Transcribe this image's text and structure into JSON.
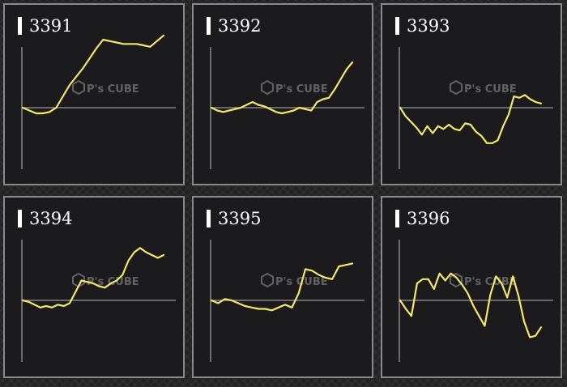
{
  "watermark": {
    "brand": "P's CUBE"
  },
  "colors": {
    "line": "#f4e76a",
    "axis": "#9a9a9a",
    "panel": "#1b1b1d",
    "border": "#8a8a8a"
  },
  "chart_data": [
    {
      "type": "line",
      "title": "3391",
      "y": [
        0,
        -2,
        -4,
        -4,
        -3,
        0,
        8,
        16,
        22,
        28,
        35,
        42,
        48,
        47,
        46,
        45,
        45,
        45,
        44,
        43,
        47,
        51
      ]
    },
    {
      "type": "line",
      "title": "3392",
      "y": [
        0,
        -2,
        -3,
        -2,
        -1,
        0,
        2,
        4,
        2,
        1,
        -1,
        -3,
        -4,
        -3,
        -2,
        0,
        -1,
        -2,
        4,
        6,
        7,
        13,
        20,
        27,
        32
      ]
    },
    {
      "type": "line",
      "title": "3393",
      "y": [
        0,
        -6,
        -10,
        -14,
        -19,
        -13,
        -18,
        -13,
        -15,
        -12,
        -15,
        -16,
        -11,
        -12,
        -17,
        -20,
        -25,
        -25,
        -23,
        -13,
        -5,
        8,
        7,
        9,
        6,
        4,
        3
      ]
    },
    {
      "type": "line",
      "title": "3394",
      "y": [
        0,
        -1,
        -3,
        -5,
        -4,
        -5,
        -3,
        -4,
        -2,
        6,
        14,
        13,
        12,
        10,
        9,
        12,
        14,
        18,
        28,
        34,
        37,
        34,
        32,
        30,
        32
      ]
    },
    {
      "type": "line",
      "title": "3395",
      "y": [
        0,
        -2,
        1,
        0,
        -2,
        -4,
        -5,
        -6,
        -6,
        -7,
        -5,
        -3,
        -5,
        5,
        22,
        21,
        18,
        16,
        15,
        24,
        25,
        26
      ]
    },
    {
      "type": "line",
      "title": "3396",
      "y": [
        0,
        -6,
        -11,
        12,
        15,
        15,
        8,
        19,
        14,
        19,
        16,
        11,
        5,
        -4,
        -11,
        -18,
        4,
        17,
        12,
        2,
        17,
        3,
        -15,
        -26,
        -25,
        -19
      ]
    }
  ]
}
